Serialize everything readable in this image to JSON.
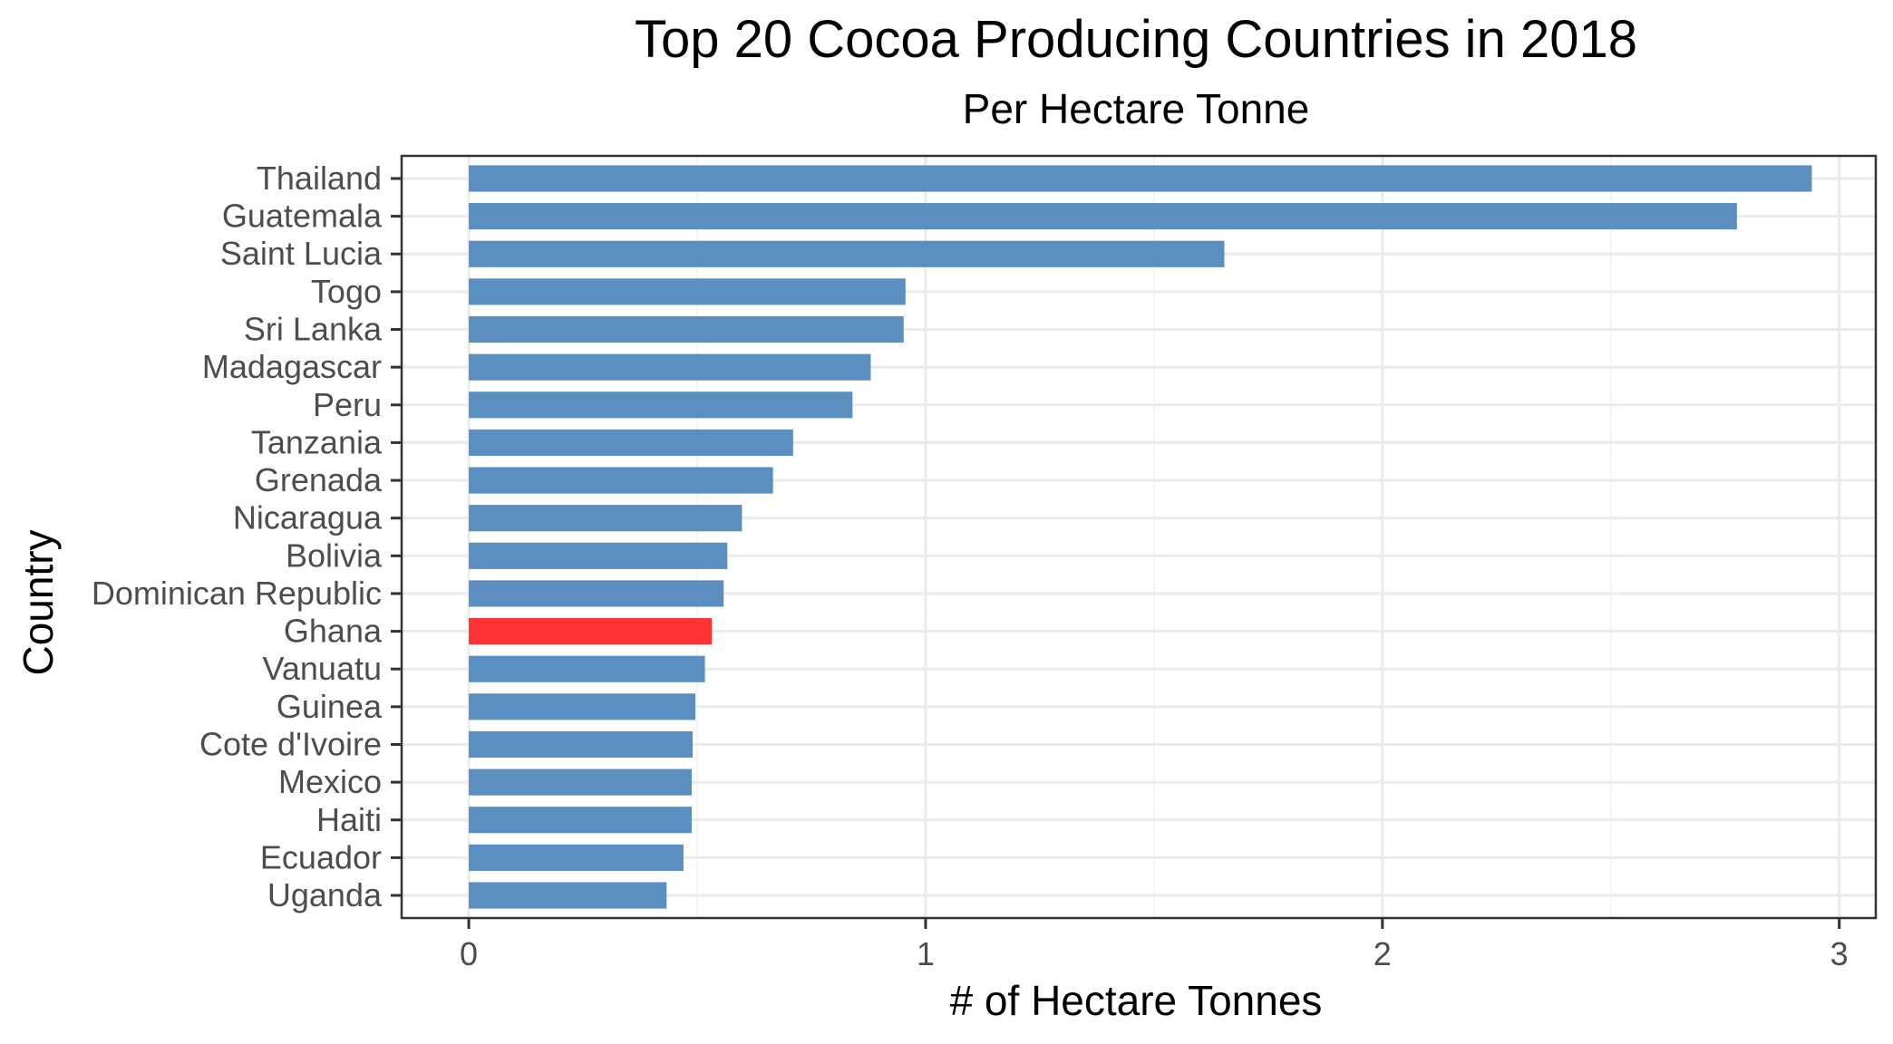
{
  "chart_data": {
    "type": "bar",
    "orientation": "horizontal",
    "title": "Top 20 Cocoa Producing Countries in 2018",
    "subtitle": "Per Hectare Tonne",
    "xlabel": "# of Hectare Tonnes",
    "ylabel": "Country",
    "xlim": [
      -0.147,
      3.08
    ],
    "x_ticks": [
      0,
      1,
      2,
      3
    ],
    "x_tick_labels": [
      "0",
      "1",
      "2",
      "3"
    ],
    "grid": true,
    "legend": "none",
    "categories": [
      "Thailand",
      "Guatemala",
      "Saint Lucia",
      "Togo",
      "Sri Lanka",
      "Madagascar",
      "Peru",
      "Tanzania",
      "Grenada",
      "Nicaragua",
      "Bolivia",
      "Dominican Republic",
      "Ghana",
      "Vanuatu",
      "Guinea",
      "Cote d'Ivoire",
      "Mexico",
      "Haiti",
      "Ecuador",
      "Uganda"
    ],
    "values": [
      2.94,
      2.776,
      1.654,
      0.956,
      0.952,
      0.88,
      0.84,
      0.71,
      0.666,
      0.598,
      0.566,
      0.558,
      0.532,
      0.517,
      0.496,
      0.49,
      0.488,
      0.488,
      0.47,
      0.433
    ],
    "highlight": "Ghana",
    "colors": {
      "bar": "#5b8fbf",
      "highlight": "#ff3333"
    }
  }
}
